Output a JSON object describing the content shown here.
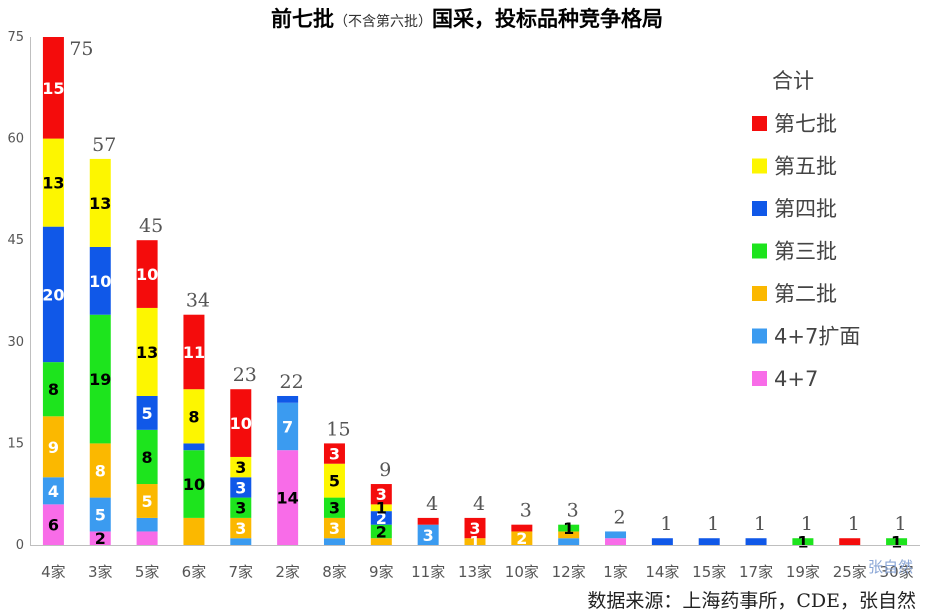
{
  "chart_data": {
    "type": "bar",
    "stacked": true,
    "title": "前七批",
    "subtitle": "（不含第六批）",
    "title_suffix": "国采，投标品种竞争格局",
    "ylim": [
      0,
      75
    ],
    "yticks": [
      "0",
      "15",
      "30",
      "45",
      "60",
      "75"
    ],
    "categories": [
      "4家",
      "3家",
      "5家",
      "6家",
      "7家",
      "2家",
      "8家",
      "9家",
      "11家",
      "13家",
      "10家",
      "12家",
      "1家",
      "14家",
      "15家",
      "17家",
      "19家",
      "25家",
      "30家"
    ],
    "totals": [
      75,
      57,
      45,
      34,
      23,
      22,
      15,
      9,
      4,
      4,
      3,
      3,
      2,
      1,
      1,
      1,
      1,
      1,
      1
    ],
    "series": [
      {
        "name": "4+7",
        "color": "#f86ce8",
        "label_color": "#000000",
        "values": [
          6,
          2,
          2,
          0,
          0,
          14,
          0,
          0,
          0,
          0,
          0,
          0,
          1,
          0,
          0,
          0,
          0,
          0,
          0
        ],
        "labels": [
          "6",
          "2",
          "",
          "",
          "",
          "14",
          "",
          "",
          "",
          "",
          "",
          "",
          "",
          "",
          "",
          "",
          "",
          "",
          ""
        ]
      },
      {
        "name": "4+7扩面",
        "color": "#3b9bf0",
        "label_color": "#ffffff",
        "values": [
          4,
          5,
          2,
          0,
          1,
          7,
          1,
          0,
          3,
          0,
          0,
          1,
          1,
          0,
          0,
          0,
          0,
          0,
          0
        ],
        "labels": [
          "4",
          "5",
          "",
          "",
          "",
          "7",
          "",
          "",
          "3",
          "",
          "",
          "",
          "",
          "",
          "",
          "",
          "",
          "",
          ""
        ]
      },
      {
        "name": "第二批",
        "color": "#fbb800",
        "label_color": "#ffffff",
        "values": [
          9,
          8,
          5,
          4,
          3,
          0,
          3,
          1,
          0,
          1,
          2,
          1,
          0,
          0,
          0,
          0,
          0,
          0,
          0
        ],
        "labels": [
          "9",
          "8",
          "5",
          "",
          "3",
          "",
          "3",
          "",
          "",
          "1",
          "2",
          "",
          "",
          "",
          "",
          "",
          "",
          "",
          ""
        ]
      },
      {
        "name": "第三批",
        "color": "#1de41d",
        "label_color": "#000000",
        "values": [
          8,
          19,
          8,
          10,
          3,
          0,
          3,
          2,
          0,
          0,
          0,
          1,
          0,
          0,
          0,
          0,
          1,
          0,
          1
        ],
        "labels": [
          "8",
          "19",
          "8",
          "10",
          "3",
          "",
          "3",
          "2",
          "",
          "",
          "",
          "1",
          "",
          "",
          "",
          "",
          "1",
          "",
          "1"
        ]
      },
      {
        "name": "第四批",
        "color": "#1058e8",
        "label_color": "#ffffff",
        "values": [
          20,
          10,
          5,
          1,
          3,
          1,
          0,
          2,
          0,
          0,
          0,
          0,
          0,
          1,
          1,
          1,
          0,
          0,
          0
        ],
        "labels": [
          "20",
          "10",
          "5",
          "",
          "3",
          "",
          "",
          "2",
          "",
          "",
          "",
          "",
          "",
          "",
          "",
          "",
          "",
          "",
          ""
        ]
      },
      {
        "name": "第五批",
        "color": "#fdf600",
        "label_color": "#000000",
        "values": [
          13,
          13,
          13,
          8,
          3,
          0,
          5,
          1,
          0,
          0,
          0,
          0,
          0,
          0,
          0,
          0,
          0,
          0,
          0
        ],
        "labels": [
          "13",
          "13",
          "13",
          "8",
          "3",
          "",
          "5",
          "1",
          "",
          "",
          "",
          "",
          "",
          "",
          "",
          "",
          "",
          "",
          ""
        ]
      },
      {
        "name": "第七批",
        "color": "#f40c0c",
        "label_color": "#ffffff",
        "values": [
          15,
          0,
          10,
          11,
          10,
          0,
          3,
          3,
          1,
          3,
          1,
          0,
          0,
          0,
          0,
          0,
          0,
          1,
          0
        ],
        "labels": [
          "15",
          "",
          "10",
          "11",
          "10",
          "",
          "3",
          "3",
          "",
          "3",
          "",
          "",
          "",
          "",
          "",
          "",
          "",
          "",
          ""
        ]
      }
    ],
    "legend": {
      "title": "合计",
      "placement": "right",
      "order": [
        "第七批",
        "第五批",
        "第四批",
        "第三批",
        "第二批",
        "4+7扩面",
        "4+7"
      ]
    },
    "grid": false
  },
  "source_text": "数据来源：上海药事所，CDE，张自然",
  "watermark_text": "张自然"
}
